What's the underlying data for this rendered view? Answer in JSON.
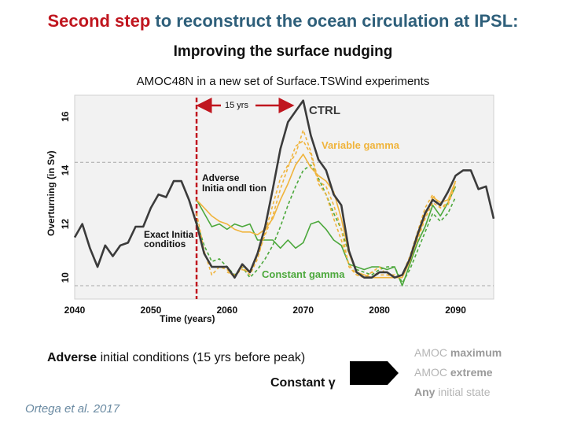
{
  "slide": {
    "title_highlight": "Second step",
    "title_rest": " to reconstruct the ocean circulation at IPSL:",
    "subtitle": "Improving the surface nudging",
    "chart_title": "AMOC48N in a new set of Surface.TSWind experiments"
  },
  "bottom": {
    "adverse_bold": "Adverse",
    "adverse_rest": " initial conditions (15 yrs before peak)",
    "constant_label": "Constant γ",
    "citation": "Ortega et al. 2017"
  },
  "right_notes": [
    {
      "prefix": "AMOC ",
      "strong": "maximum"
    },
    {
      "prefix": "AMOC ",
      "strong": "extreme"
    },
    {
      "prefix": "",
      "strong": "Any",
      "suffix": " initial state"
    }
  ],
  "colors": {
    "title": "#2e5f7a",
    "highlight": "#c0161f",
    "ctrl": "#3b3b3b",
    "variable": "#f0b43c",
    "constant": "#4ca83c",
    "marker": "#c0161f",
    "ref_line": "#a8a8a8"
  },
  "chart_data": {
    "type": "line",
    "xlabel": "Time (years)",
    "ylabel": "Overturning (in Sv)",
    "xlim": [
      2040,
      2095
    ],
    "ylim": [
      9.2,
      16.8
    ],
    "xticks": [
      2040,
      2050,
      2060,
      2070,
      2080,
      2090
    ],
    "yticks": [
      10,
      12,
      14,
      16
    ],
    "ref_lines": [
      14.3,
      9.7
    ],
    "vertical_marker": 2056,
    "annotations": {
      "gap": "15 yrs",
      "ctrl": "CTRL",
      "variable": "Variable gamma",
      "constant": "Constant gamma",
      "adverse_1": "Adverse",
      "adverse_2": "Initia ondl tion",
      "exact_1": "Exact Initia",
      "exact_2": "conditios"
    },
    "series": [
      {
        "name": "CTRL",
        "style": "solid",
        "color": "ctrl",
        "x": [
          2040,
          2041,
          2042,
          2043,
          2044,
          2045,
          2046,
          2047,
          2048,
          2049,
          2050,
          2051,
          2052,
          2053,
          2054,
          2055,
          2056,
          2057,
          2058,
          2059,
          2060,
          2061,
          2062,
          2063,
          2064,
          2065,
          2066,
          2067,
          2068,
          2069,
          2070,
          2071,
          2072,
          2073,
          2074,
          2075,
          2076,
          2077,
          2078,
          2079,
          2080,
          2081,
          2082,
          2083,
          2084,
          2085,
          2086,
          2087,
          2088,
          2089,
          2090,
          2091,
          2092,
          2093,
          2094,
          2095
        ],
        "values": [
          11.5,
          12.0,
          11.1,
          10.4,
          11.2,
          10.8,
          11.2,
          11.3,
          11.9,
          11.9,
          12.6,
          13.1,
          13.0,
          13.6,
          13.6,
          12.9,
          12.0,
          10.9,
          10.4,
          10.4,
          10.4,
          10.0,
          10.5,
          10.2,
          10.9,
          11.9,
          13.3,
          14.8,
          15.8,
          16.2,
          16.6,
          15.3,
          14.4,
          14.0,
          13.1,
          12.7,
          11.0,
          10.2,
          10.0,
          10.0,
          10.2,
          10.2,
          10.0,
          10.1,
          10.7,
          11.6,
          12.4,
          12.9,
          12.7,
          13.2,
          13.8,
          14.0,
          14.0,
          13.3,
          13.4,
          12.2
        ]
      },
      {
        "name": "Variable gamma 1",
        "style": "solid",
        "color": "variable",
        "x": [
          2056,
          2057,
          2058,
          2059,
          2060,
          2061,
          2062,
          2063,
          2064,
          2065,
          2066,
          2067,
          2068,
          2069,
          2070,
          2071,
          2072,
          2073,
          2074,
          2075,
          2076,
          2077,
          2078,
          2079,
          2080,
          2081,
          2082,
          2083,
          2084,
          2085,
          2086,
          2087,
          2088,
          2089,
          2090
        ],
        "values": [
          12.9,
          12.6,
          12.3,
          12.1,
          12.0,
          11.8,
          11.7,
          11.7,
          11.6,
          11.8,
          12.2,
          12.9,
          13.5,
          14.2,
          14.6,
          14.1,
          13.8,
          13.6,
          13.2,
          12.2,
          10.9,
          10.2,
          10.1,
          10.0,
          10.0,
          10.0,
          10.0,
          10.0,
          10.6,
          11.5,
          12.3,
          13.0,
          12.8,
          12.9,
          13.6
        ]
      },
      {
        "name": "Variable gamma 2",
        "style": "dashed",
        "color": "variable",
        "x": [
          2056,
          2057,
          2058,
          2059,
          2060,
          2061,
          2062,
          2063,
          2064,
          2065,
          2066,
          2067,
          2068,
          2069,
          2070,
          2071,
          2072,
          2073,
          2074,
          2075,
          2076,
          2077,
          2078,
          2079,
          2080,
          2081,
          2082,
          2083,
          2084,
          2085,
          2086,
          2087,
          2088,
          2089,
          2090
        ],
        "values": [
          12.4,
          11.0,
          10.1,
          10.4,
          10.3,
          10.0,
          10.4,
          10.1,
          10.7,
          11.7,
          12.7,
          13.7,
          14.2,
          14.6,
          15.5,
          14.7,
          13.6,
          13.4,
          12.7,
          11.8,
          10.4,
          10.1,
          10.0,
          10.2,
          10.4,
          10.1,
          10.0,
          10.1,
          10.8,
          11.7,
          12.6,
          13.1,
          12.6,
          12.7,
          13.5
        ]
      },
      {
        "name": "Variable gamma 3",
        "style": "dashed",
        "color": "variable",
        "x": [
          2060,
          2061,
          2062,
          2063,
          2064,
          2065,
          2066,
          2067,
          2068,
          2069,
          2070,
          2071,
          2072,
          2073,
          2074,
          2075,
          2076,
          2077,
          2078,
          2079,
          2080,
          2081,
          2082,
          2083,
          2084,
          2085,
          2086,
          2087,
          2088,
          2089,
          2090
        ],
        "values": [
          10.2,
          10.1,
          10.3,
          10.2,
          10.8,
          11.6,
          12.3,
          13.3,
          14.1,
          14.9,
          15.1,
          14.6,
          13.5,
          13.1,
          12.2,
          11.4,
          10.5,
          10.1,
          10.0,
          10.2,
          10.1,
          10.1,
          10.1,
          10.0,
          10.7,
          11.4,
          12.2,
          12.8,
          12.6,
          12.8,
          13.6
        ]
      },
      {
        "name": "Constant gamma 1",
        "style": "solid",
        "color": "constant",
        "x": [
          2056,
          2057,
          2058,
          2059,
          2060,
          2061,
          2062,
          2063,
          2064,
          2065,
          2066,
          2067,
          2068,
          2069,
          2070,
          2071,
          2072,
          2073,
          2074,
          2075,
          2076,
          2077,
          2078,
          2079,
          2080,
          2081,
          2082,
          2083,
          2084,
          2085,
          2086,
          2087,
          2088,
          2089,
          2090
        ],
        "values": [
          12.9,
          12.4,
          11.9,
          12.0,
          11.8,
          12.0,
          11.9,
          12.0,
          11.4,
          11.4,
          11.4,
          11.1,
          11.4,
          11.1,
          11.3,
          12.0,
          12.1,
          11.8,
          11.4,
          11.2,
          10.5,
          10.4,
          10.3,
          10.4,
          10.4,
          10.3,
          10.4,
          9.7,
          10.5,
          11.3,
          11.9,
          12.7,
          12.3,
          12.8,
          13.4
        ]
      },
      {
        "name": "Constant gamma 2",
        "style": "dashed",
        "color": "constant",
        "x": [
          2056,
          2057,
          2058,
          2059,
          2060,
          2061,
          2062,
          2063,
          2064,
          2065,
          2066,
          2067,
          2068,
          2069,
          2070,
          2071,
          2072,
          2073,
          2074,
          2075,
          2076,
          2077,
          2078,
          2079,
          2080,
          2081,
          2082,
          2083,
          2084,
          2085,
          2086,
          2087,
          2088,
          2089,
          2090
        ],
        "values": [
          12.1,
          11.2,
          10.6,
          10.7,
          10.4,
          10.1,
          10.4,
          10.0,
          10.3,
          10.7,
          11.2,
          11.9,
          12.7,
          13.4,
          14.0,
          14.2,
          13.7,
          13.1,
          12.4,
          11.8,
          10.9,
          10.3,
          10.2,
          10.1,
          10.3,
          10.4,
          10.4,
          9.8,
          10.3,
          11.0,
          11.7,
          12.4,
          12.1,
          12.4,
          13.0
        ]
      }
    ]
  }
}
